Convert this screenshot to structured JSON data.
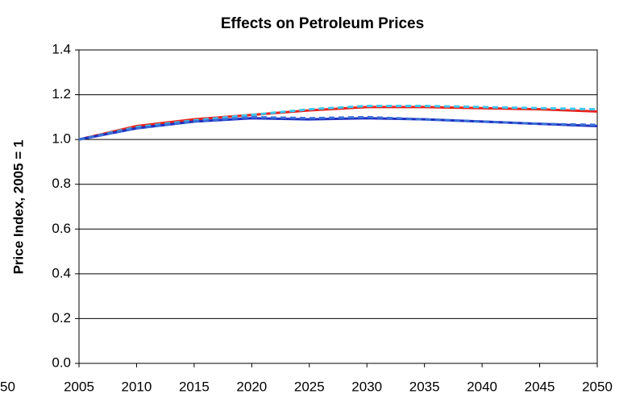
{
  "chart_data": {
    "type": "line",
    "title": "Effects on Petroleum Prices",
    "y_label": "Price Index, 2005 = 1",
    "x": [
      2005,
      2010,
      2015,
      2020,
      2025,
      2030,
      2035,
      2040,
      2045,
      2050
    ],
    "series": [
      {
        "color": "#e8231c",
        "dash": false,
        "values": [
          1.0,
          1.06,
          1.09,
          1.11,
          1.13,
          1.145,
          1.145,
          1.14,
          1.135,
          1.125
        ]
      },
      {
        "color": "#3cc8f0",
        "dash": true,
        "values": [
          1.0,
          1.055,
          1.085,
          1.11,
          1.135,
          1.15,
          1.15,
          1.145,
          1.14,
          1.135
        ]
      },
      {
        "color": "#1f2fbf",
        "dash": false,
        "values": [
          1.0,
          1.05,
          1.08,
          1.095,
          1.09,
          1.095,
          1.09,
          1.08,
          1.07,
          1.06
        ]
      },
      {
        "color": "#3a6fd8",
        "dash": true,
        "values": [
          1.0,
          1.05,
          1.08,
          1.1,
          1.095,
          1.1,
          1.09,
          1.08,
          1.07,
          1.065
        ]
      }
    ],
    "xlim": [
      2005,
      2050
    ],
    "xticks": [
      2005,
      2010,
      2015,
      2020,
      2025,
      2030,
      2035,
      2040,
      2045,
      2050
    ],
    "ylim": [
      0,
      1.4
    ],
    "yticks": [
      {
        "value": 0,
        "label": "0.0"
      },
      0.2,
      0.4,
      0.6,
      0.8,
      {
        "value": 1,
        "label": "1.0"
      },
      1.2,
      1.4
    ],
    "grid": true
  },
  "cropped_text": "50"
}
